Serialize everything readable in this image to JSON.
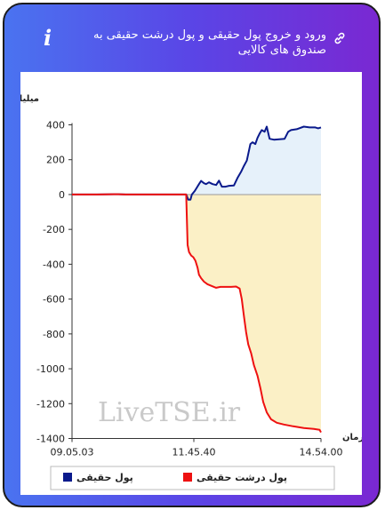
{
  "header": {
    "title": "ورود و خروج پول حقیقی و پول درشت حقیقی به صندوق های کالایی",
    "info_icon": "i",
    "link_icon": "link-icon"
  },
  "watermark": "LiveTSE.ir",
  "colors": {
    "real_money": "#0a1a8c",
    "big_real_money": "#ee1111",
    "positive_fill": "#e6f1fa",
    "negative_fill": "#fbf0c6",
    "gradient_start": "#4a73f0",
    "gradient_end": "#7a28d2"
  },
  "chart_data": {
    "type": "line",
    "title": "",
    "ylabel": "میلیارد تومان",
    "xlabel": "زمان",
    "ylim": [
      -1400,
      450
    ],
    "yticks": [
      "400",
      "200",
      "0",
      "-200",
      "-400",
      "-600",
      "-800",
      "-1000",
      "-1200",
      "-1400"
    ],
    "xticks": [
      "09.05.03",
      "11.45.40",
      "14.54.00"
    ],
    "legend_position": "bottom",
    "series": [
      {
        "name": "پول حقیقی",
        "color": "#0a1a8c",
        "points": [
          [
            "09:05",
            0
          ],
          [
            "09:40",
            0
          ],
          [
            "10:10",
            2
          ],
          [
            "10:20",
            0
          ],
          [
            "10:50",
            0
          ],
          [
            "11:45",
            0
          ],
          [
            "11:48",
            -30
          ],
          [
            "11:51",
            -30
          ],
          [
            "11:53",
            0
          ],
          [
            "11:57",
            20
          ],
          [
            "12:00",
            40
          ],
          [
            "12:03",
            60
          ],
          [
            "12:06",
            78
          ],
          [
            "12:10",
            65
          ],
          [
            "12:13",
            60
          ],
          [
            "12:17",
            70
          ],
          [
            "12:22",
            60
          ],
          [
            "12:27",
            55
          ],
          [
            "12:31",
            80
          ],
          [
            "12:35",
            45
          ],
          [
            "12:40",
            45
          ],
          [
            "12:45",
            50
          ],
          [
            "12:52",
            52
          ],
          [
            "12:57",
            95
          ],
          [
            "13:02",
            130
          ],
          [
            "13:06",
            165
          ],
          [
            "13:10",
            195
          ],
          [
            "13:15",
            290
          ],
          [
            "13:18",
            300
          ],
          [
            "13:22",
            290
          ],
          [
            "13:25",
            325
          ],
          [
            "13:28",
            350
          ],
          [
            "13:31",
            370
          ],
          [
            "13:35",
            360
          ],
          [
            "13:38",
            390
          ],
          [
            "13:42",
            320
          ],
          [
            "13:48",
            315
          ],
          [
            "14:03",
            320
          ],
          [
            "14:08",
            360
          ],
          [
            "14:12",
            370
          ],
          [
            "14:20",
            375
          ],
          [
            "14:30",
            390
          ],
          [
            "14:38",
            385
          ],
          [
            "14:46",
            385
          ],
          [
            "14:50",
            380
          ],
          [
            "14:54",
            385
          ]
        ]
      },
      {
        "name": "پول درشت حقیقی",
        "color": "#ee1111",
        "points": [
          [
            "09:05",
            0
          ],
          [
            "09:40",
            0
          ],
          [
            "10:10",
            2
          ],
          [
            "10:20",
            0
          ],
          [
            "10:50",
            0
          ],
          [
            "11:45",
            0
          ],
          [
            "11:47",
            -290
          ],
          [
            "11:49",
            -330
          ],
          [
            "11:52",
            -350
          ],
          [
            "11:55",
            -360
          ],
          [
            "11:58",
            -380
          ],
          [
            "12:01",
            -420
          ],
          [
            "12:03",
            -460
          ],
          [
            "12:06",
            -480
          ],
          [
            "12:10",
            -500
          ],
          [
            "12:15",
            -515
          ],
          [
            "12:21",
            -525
          ],
          [
            "12:27",
            -535
          ],
          [
            "12:33",
            -530
          ],
          [
            "12:40",
            -530
          ],
          [
            "12:48",
            -530
          ],
          [
            "12:55",
            -528
          ],
          [
            "13:00",
            -540
          ],
          [
            "13:03",
            -600
          ],
          [
            "13:06",
            -700
          ],
          [
            "13:09",
            -790
          ],
          [
            "13:12",
            -860
          ],
          [
            "13:16",
            -910
          ],
          [
            "13:20",
            -980
          ],
          [
            "13:25",
            -1040
          ],
          [
            "13:29",
            -1110
          ],
          [
            "13:33",
            -1190
          ],
          [
            "13:38",
            -1250
          ],
          [
            "13:44",
            -1290
          ],
          [
            "13:52",
            -1310
          ],
          [
            "14:02",
            -1320
          ],
          [
            "14:15",
            -1330
          ],
          [
            "14:30",
            -1340
          ],
          [
            "14:44",
            -1345
          ],
          [
            "14:52",
            -1350
          ],
          [
            "14:54",
            -1365
          ]
        ]
      }
    ]
  }
}
